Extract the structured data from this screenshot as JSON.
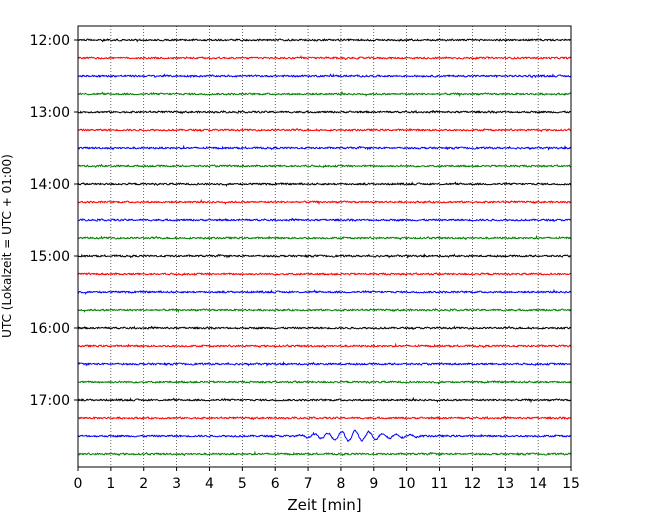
{
  "chart_data": {
    "type": "line",
    "xlabel": "Zeit  [min]",
    "ylabel": "UTC (Lokalzeit = UTC + 01:00)",
    "xlim": [
      0,
      15
    ],
    "x_ticks": [
      0,
      1,
      2,
      3,
      4,
      5,
      6,
      7,
      8,
      9,
      10,
      11,
      12,
      13,
      14,
      15
    ],
    "x_tick_labels": [
      "0",
      "1",
      "2",
      "3",
      "4",
      "5",
      "6",
      "7",
      "8",
      "9",
      "10",
      "11",
      "12",
      "13",
      "14",
      "15"
    ],
    "y_tick_labels": [
      "12:00",
      "13:00",
      "14:00",
      "15:00",
      "16:00",
      "17:00"
    ],
    "row_interval_minutes": 15,
    "first_row": "12:00",
    "row_count": 24,
    "row_colors": [
      "#000000",
      "#ff0000",
      "#0000ff",
      "#008000"
    ],
    "grid": "vertical dotted lines at each minute",
    "event": {
      "row": "17:30",
      "color": "#0000ff",
      "start_min": 6.5,
      "end_min": 10.5,
      "peak_min": 8.4
    }
  }
}
